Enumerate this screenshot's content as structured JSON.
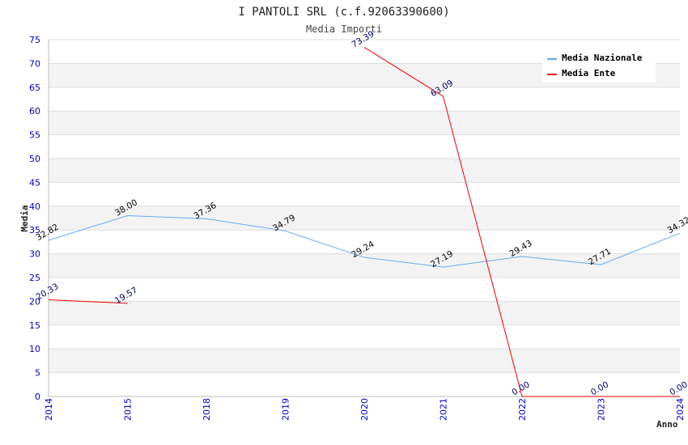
{
  "chart_data": {
    "type": "line",
    "title": "I PANTOLI SRL (c.f.92063390600)",
    "subtitle": "Media Importi",
    "xlabel": "Anno",
    "ylabel": "Media",
    "categories": [
      "2014",
      "2015",
      "2018",
      "2019",
      "2020",
      "2021",
      "2022",
      "2023",
      "2024"
    ],
    "y_ticks": [
      0,
      5,
      10,
      15,
      20,
      25,
      30,
      35,
      40,
      45,
      50,
      55,
      60,
      65,
      70,
      75
    ],
    "ylim": [
      0,
      75
    ],
    "grid": "horizontal, alternating bands",
    "legend_position": "top-right",
    "series": [
      {
        "name": "Media Nazionale",
        "color": "#66aaee",
        "label_color": "#000000",
        "values": [
          32.82,
          38.0,
          37.36,
          34.79,
          29.24,
          27.19,
          29.43,
          27.71,
          34.32
        ],
        "labels": [
          "32.82",
          "38.00",
          "37.36",
          "34.79",
          "29.24",
          "27.19",
          "29.43",
          "27.71",
          "34.32"
        ]
      },
      {
        "name": "Media Ente",
        "color": "#ee0000",
        "label_color": "#000066",
        "values": [
          20.33,
          19.57,
          null,
          null,
          73.39,
          63.09,
          0.0,
          0.0,
          0.0
        ],
        "labels": [
          "20.33",
          "19.57",
          "",
          "",
          "73.39",
          "63.09",
          "0.00",
          "0.00",
          "0.00"
        ]
      }
    ]
  }
}
